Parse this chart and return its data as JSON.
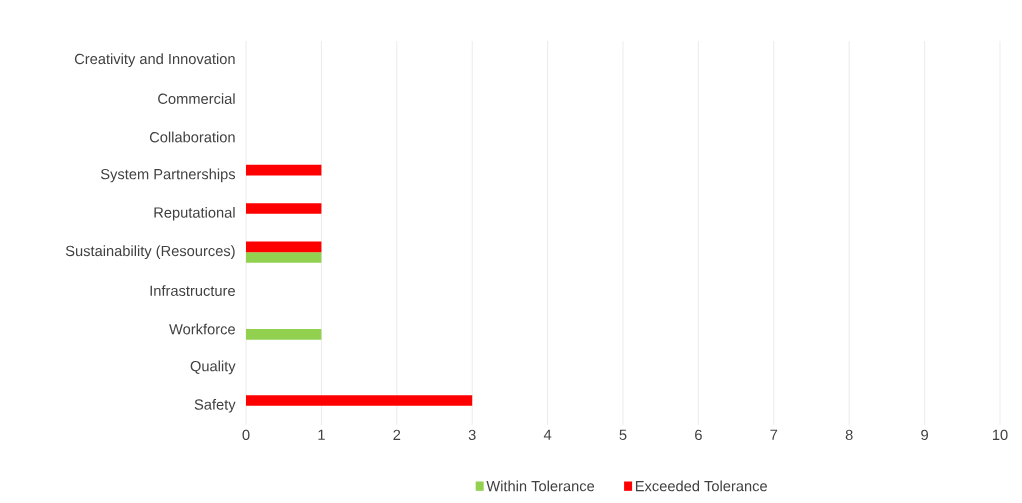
{
  "chart_data": {
    "type": "bar",
    "orientation": "horizontal",
    "categories": [
      "Creativity and Innovation",
      "Commercial",
      "Collaboration",
      "System Partnerships",
      "Reputational",
      "Sustainability (Resources)",
      "Infrastructure",
      "Workforce",
      "Quality",
      "Safety"
    ],
    "series": [
      {
        "name": "Within Tolerance",
        "color": "#92d050",
        "values": [
          0,
          0,
          0,
          0,
          0,
          1,
          0,
          1,
          0,
          0
        ]
      },
      {
        "name": "Exceeded Tolerance",
        "color": "#ff0000",
        "values": [
          0,
          0,
          0,
          1,
          1,
          1,
          0,
          0,
          0,
          3
        ]
      }
    ],
    "xlim": [
      0,
      10
    ],
    "xticks": [
      0,
      1,
      2,
      3,
      4,
      5,
      6,
      7,
      8,
      9,
      10
    ],
    "grid": "x",
    "legend": "bottom"
  }
}
